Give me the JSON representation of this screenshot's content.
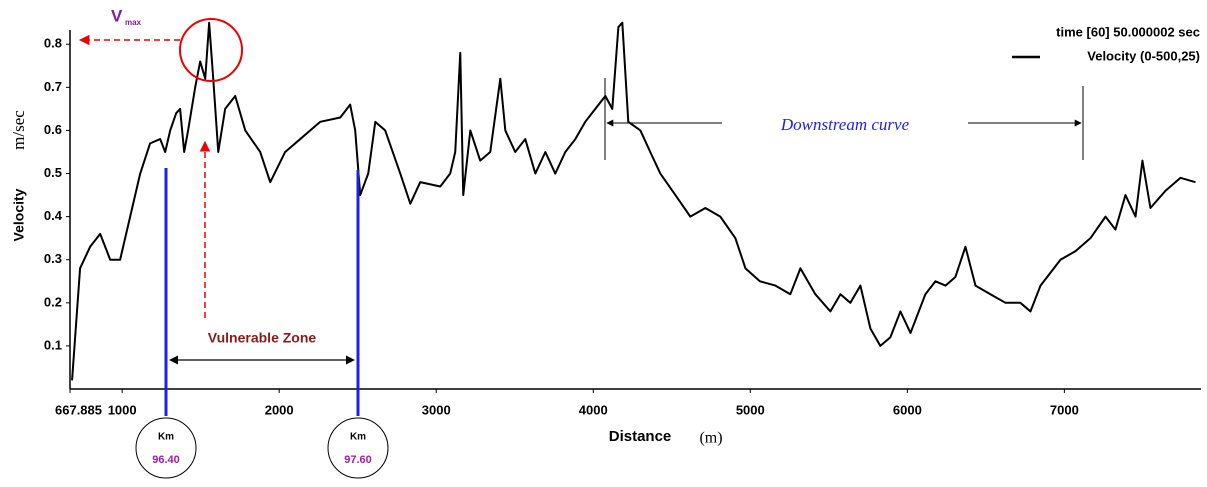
{
  "chart_data": {
    "type": "line",
    "legend_title": "time [60] 50.000002 sec",
    "xlabel": "Distance",
    "xlabel_unit": "(m)",
    "ylabel": "Velocity",
    "ylabel_unit": "m/sec",
    "xlim": [
      667.885,
      7870
    ],
    "ylim": [
      0,
      0.86
    ],
    "xticks": [
      {
        "value": 667.885,
        "label": "667.885"
      },
      1000,
      2000,
      3000,
      4000,
      5000,
      6000,
      7000
    ],
    "yticks": [
      0.1,
      0.2,
      0.3,
      0.4,
      0.5,
      0.6,
      0.7,
      0.8
    ],
    "x": [
      681,
      732,
      796,
      860,
      924,
      987,
      1019,
      1051,
      1115,
      1178,
      1242,
      1274,
      1306,
      1344,
      1369,
      1395,
      1420,
      1465,
      1497,
      1529,
      1554,
      1580,
      1612,
      1656,
      1720,
      1784,
      1879,
      1943,
      2038,
      2134,
      2261,
      2389,
      2452,
      2484,
      2516,
      2567,
      2612,
      2675,
      2771,
      2835,
      2898,
      3026,
      3089,
      3121,
      3153,
      3172,
      3217,
      3280,
      3344,
      3408,
      3440,
      3503,
      3567,
      3631,
      3695,
      3758,
      3822,
      3886,
      3949,
      4013,
      4077,
      4121,
      4160,
      4185,
      4223,
      4300,
      4363,
      4427,
      4523,
      4618,
      4714,
      4809,
      4905,
      4969,
      5061,
      5160,
      5255,
      5319,
      5414,
      5510,
      5574,
      5637,
      5701,
      5765,
      5828,
      5892,
      5956,
      6020,
      6115,
      6179,
      6243,
      6306,
      6370,
      6434,
      6529,
      6625,
      6720,
      6784,
      6848,
      6975,
      7071,
      7166,
      7262,
      7325,
      7389,
      7453,
      7497,
      7548,
      7644,
      7739,
      7835
    ],
    "series": [
      {
        "name": "Velocity (0-500,25)",
        "color": "#000000",
        "values": [
          0.02,
          0.28,
          0.33,
          0.36,
          0.3,
          0.3,
          0.35,
          0.4,
          0.5,
          0.57,
          0.58,
          0.55,
          0.6,
          0.64,
          0.65,
          0.55,
          0.6,
          0.7,
          0.76,
          0.72,
          0.85,
          0.72,
          0.55,
          0.65,
          0.68,
          0.6,
          0.55,
          0.48,
          0.55,
          0.58,
          0.62,
          0.63,
          0.66,
          0.6,
          0.45,
          0.5,
          0.62,
          0.6,
          0.5,
          0.43,
          0.48,
          0.47,
          0.5,
          0.55,
          0.78,
          0.45,
          0.6,
          0.53,
          0.55,
          0.72,
          0.6,
          0.55,
          0.58,
          0.5,
          0.55,
          0.5,
          0.55,
          0.58,
          0.62,
          0.65,
          0.68,
          0.65,
          0.84,
          0.85,
          0.62,
          0.6,
          0.55,
          0.5,
          0.45,
          0.4,
          0.42,
          0.4,
          0.35,
          0.28,
          0.25,
          0.24,
          0.22,
          0.28,
          0.22,
          0.18,
          0.22,
          0.2,
          0.24,
          0.14,
          0.1,
          0.12,
          0.18,
          0.13,
          0.22,
          0.25,
          0.24,
          0.26,
          0.33,
          0.24,
          0.22,
          0.2,
          0.2,
          0.18,
          0.24,
          0.3,
          0.32,
          0.35,
          0.4,
          0.37,
          0.45,
          0.4,
          0.53,
          0.42,
          0.46,
          0.49,
          0.48
        ]
      }
    ],
    "annotations": {
      "vmax": "V",
      "vmax_sub": "max",
      "vulnerable_zone": "Vulnerable Zone",
      "downstream": "Downstream curve",
      "km_markers": [
        {
          "label": "Km",
          "value": "96.40"
        },
        {
          "label": "Km",
          "value": "97.60"
        }
      ]
    }
  }
}
